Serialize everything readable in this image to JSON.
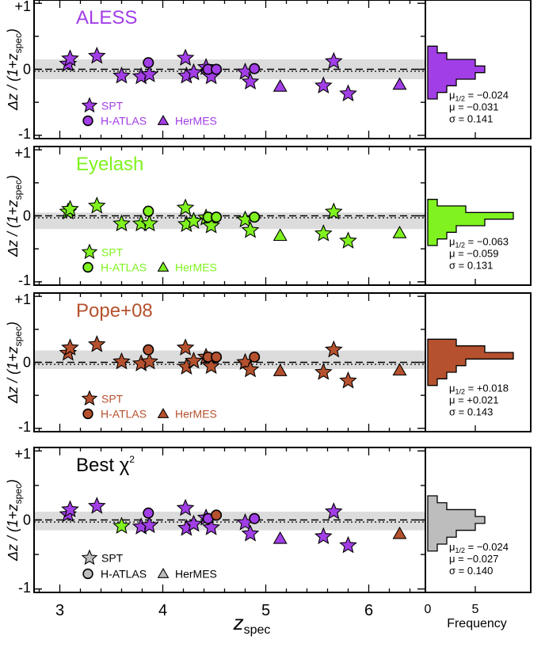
{
  "figure": {
    "xlabel_main": "z",
    "xlabel_sub": "spec",
    "ylabel_parts": [
      "Δz / (1+z",
      "spec",
      ")"
    ],
    "hist_xlabel": "Frequency",
    "hist_ticks": [
      "0",
      "5"
    ],
    "x_ticks": [
      "3",
      "4",
      "5",
      "6"
    ],
    "y_ticks": [
      "+1",
      "0",
      "-1"
    ]
  },
  "chart_data": [
    {
      "type": "scatter",
      "title": "ALESS",
      "color": "#a23ee6",
      "xlim": [
        2.75,
        6.55
      ],
      "ylim": [
        -1.05,
        1.05
      ],
      "band": [
        -0.15,
        0.15
      ],
      "legend": [
        "SPT",
        "H-ATLAS",
        "HerMES"
      ],
      "stats": [
        "μ1/2 = −0.024",
        "μ = −0.031",
        "σ = 0.141"
      ],
      "histogram": {
        "bin_edges": [
          -0.45,
          -0.35,
          -0.25,
          -0.15,
          -0.05,
          0.05,
          0.15,
          0.25,
          0.35
        ],
        "counts": [
          1,
          2,
          3,
          5,
          6,
          5,
          2,
          1
        ]
      },
      "series": [
        {
          "name": "SPT",
          "marker": "star",
          "points": [
            [
              3.08,
              0.08
            ],
            [
              3.1,
              0.16
            ],
            [
              3.36,
              0.2
            ],
            [
              3.6,
              -0.1
            ],
            [
              3.79,
              -0.11
            ],
            [
              3.87,
              -0.08
            ],
            [
              4.22,
              0.17
            ],
            [
              4.23,
              -0.1
            ],
            [
              4.3,
              -0.05
            ],
            [
              4.42,
              0.03
            ],
            [
              4.47,
              -0.11
            ],
            [
              4.8,
              -0.04
            ],
            [
              4.85,
              -0.19
            ],
            [
              5.56,
              -0.25
            ],
            [
              5.66,
              0.12
            ],
            [
              5.8,
              -0.37
            ]
          ]
        },
        {
          "name": "H-ATLAS",
          "marker": "circle",
          "points": [
            [
              3.86,
              0.1
            ],
            [
              4.44,
              0.0
            ],
            [
              4.52,
              0.0
            ],
            [
              4.89,
              0.01
            ]
          ]
        },
        {
          "name": "HerMES",
          "marker": "triangle",
          "points": [
            [
              5.14,
              -0.26
            ],
            [
              6.3,
              -0.23
            ]
          ]
        }
      ]
    },
    {
      "type": "scatter",
      "title": "Eyelash",
      "color": "#7ff21f",
      "xlim": [
        2.75,
        6.55
      ],
      "ylim": [
        -1.05,
        1.05
      ],
      "band": [
        -0.2,
        0.05
      ],
      "legend": [
        "SPT",
        "H-ATLAS",
        "HerMES"
      ],
      "stats": [
        "μ1/2 = −0.063",
        "μ = −0.059",
        "σ = 0.131"
      ],
      "histogram": {
        "bin_edges": [
          -0.45,
          -0.35,
          -0.25,
          -0.15,
          -0.05,
          0.05,
          0.15,
          0.25
        ],
        "counts": [
          1,
          2,
          3,
          6,
          9,
          4,
          1
        ]
      },
      "series": [
        {
          "name": "SPT",
          "marker": "star",
          "points": [
            [
              3.08,
              0.06
            ],
            [
              3.1,
              0.1
            ],
            [
              3.36,
              0.15
            ],
            [
              3.6,
              -0.12
            ],
            [
              3.79,
              -0.12
            ],
            [
              3.87,
              -0.12
            ],
            [
              4.22,
              0.12
            ],
            [
              4.23,
              -0.13
            ],
            [
              4.3,
              -0.08
            ],
            [
              4.42,
              -0.03
            ],
            [
              4.47,
              -0.15
            ],
            [
              4.8,
              -0.06
            ],
            [
              4.85,
              -0.22
            ],
            [
              5.56,
              -0.27
            ],
            [
              5.66,
              0.06
            ],
            [
              5.8,
              -0.38
            ]
          ]
        },
        {
          "name": "H-ATLAS",
          "marker": "circle",
          "points": [
            [
              3.86,
              0.07
            ],
            [
              4.44,
              -0.02
            ],
            [
              4.52,
              -0.02
            ],
            [
              4.89,
              -0.02
            ]
          ]
        },
        {
          "name": "HerMES",
          "marker": "triangle",
          "points": [
            [
              5.14,
              -0.3
            ],
            [
              6.3,
              -0.26
            ]
          ]
        }
      ]
    },
    {
      "type": "scatter",
      "title": "Pope+08",
      "color": "#b5512e",
      "xlim": [
        2.75,
        6.55
      ],
      "ylim": [
        -1.05,
        1.05
      ],
      "band": [
        -0.1,
        0.18
      ],
      "legend": [
        "SPT",
        "H-ATLAS",
        "HerMES"
      ],
      "stats": [
        "μ1/2 = +0.018",
        "μ = +0.021",
        "σ = 0.143"
      ],
      "histogram": {
        "bin_edges": [
          -0.35,
          -0.25,
          -0.15,
          -0.05,
          0.05,
          0.15,
          0.25,
          0.35
        ],
        "counts": [
          1,
          2,
          3,
          4,
          9,
          6,
          3
        ]
      },
      "series": [
        {
          "name": "SPT",
          "marker": "star",
          "points": [
            [
              3.08,
              0.14
            ],
            [
              3.1,
              0.22
            ],
            [
              3.36,
              0.27
            ],
            [
              3.6,
              0.01
            ],
            [
              3.79,
              -0.02
            ],
            [
              3.87,
              0.01
            ],
            [
              4.22,
              0.22
            ],
            [
              4.23,
              -0.07
            ],
            [
              4.3,
              0.02
            ],
            [
              4.42,
              0.08
            ],
            [
              4.47,
              -0.06
            ],
            [
              4.8,
              0.0
            ],
            [
              4.85,
              -0.11
            ],
            [
              5.56,
              -0.15
            ],
            [
              5.66,
              0.19
            ],
            [
              5.8,
              -0.28
            ]
          ]
        },
        {
          "name": "H-ATLAS",
          "marker": "circle",
          "points": [
            [
              3.86,
              0.19
            ],
            [
              4.44,
              0.08
            ],
            [
              4.52,
              0.08
            ],
            [
              4.89,
              0.08
            ]
          ]
        },
        {
          "name": "HerMES",
          "marker": "triangle",
          "points": [
            [
              5.14,
              -0.13
            ],
            [
              6.3,
              -0.12
            ]
          ]
        }
      ]
    },
    {
      "type": "scatter",
      "title": "Best χ",
      "title_sup": "2",
      "color": "#bdbdbd",
      "xlim": [
        2.75,
        6.55
      ],
      "ylim": [
        -1.05,
        1.05
      ],
      "band": [
        -0.15,
        0.12
      ],
      "legend": [
        "SPT",
        "H-ATLAS",
        "HerMES"
      ],
      "stats": [
        "μ1/2 = −0.024",
        "μ = −0.027",
        "σ = 0.140"
      ],
      "histogram": {
        "bin_edges": [
          -0.45,
          -0.35,
          -0.25,
          -0.15,
          -0.05,
          0.05,
          0.15,
          0.25,
          0.35
        ],
        "counts": [
          1,
          2,
          3,
          5,
          6,
          5,
          2,
          1
        ]
      },
      "series": [
        {
          "name": "SPT",
          "marker": "star",
          "colors": [
            "#a23ee6",
            "#a23ee6",
            "#a23ee6",
            "#7ff21f",
            "#a23ee6",
            "#a23ee6",
            "#a23ee6",
            "#a23ee6",
            "#a23ee6",
            "#a23ee6",
            "#a23ee6",
            "#a23ee6",
            "#a23ee6",
            "#a23ee6",
            "#a23ee6",
            "#a23ee6"
          ],
          "points": [
            [
              3.08,
              0.08
            ],
            [
              3.1,
              0.15
            ],
            [
              3.36,
              0.2
            ],
            [
              3.6,
              -0.09
            ],
            [
              3.79,
              -0.1
            ],
            [
              3.87,
              -0.08
            ],
            [
              4.22,
              0.17
            ],
            [
              4.23,
              -0.12
            ],
            [
              4.3,
              -0.06
            ],
            [
              4.42,
              0.03
            ],
            [
              4.47,
              -0.11
            ],
            [
              4.8,
              -0.04
            ],
            [
              4.85,
              -0.2
            ],
            [
              5.56,
              -0.24
            ],
            [
              5.66,
              0.12
            ],
            [
              5.8,
              -0.37
            ]
          ]
        },
        {
          "name": "H-ATLAS",
          "marker": "circle",
          "colors": [
            "#a23ee6",
            "#a23ee6",
            "#b5512e",
            "#a23ee6"
          ],
          "points": [
            [
              3.86,
              0.1
            ],
            [
              4.44,
              0.02
            ],
            [
              4.52,
              0.07
            ],
            [
              4.89,
              0.02
            ]
          ]
        },
        {
          "name": "HerMES",
          "marker": "triangle",
          "colors": [
            "#a23ee6",
            "#b5512e"
          ],
          "points": [
            [
              5.14,
              -0.27
            ],
            [
              6.3,
              -0.2
            ]
          ]
        }
      ]
    }
  ]
}
